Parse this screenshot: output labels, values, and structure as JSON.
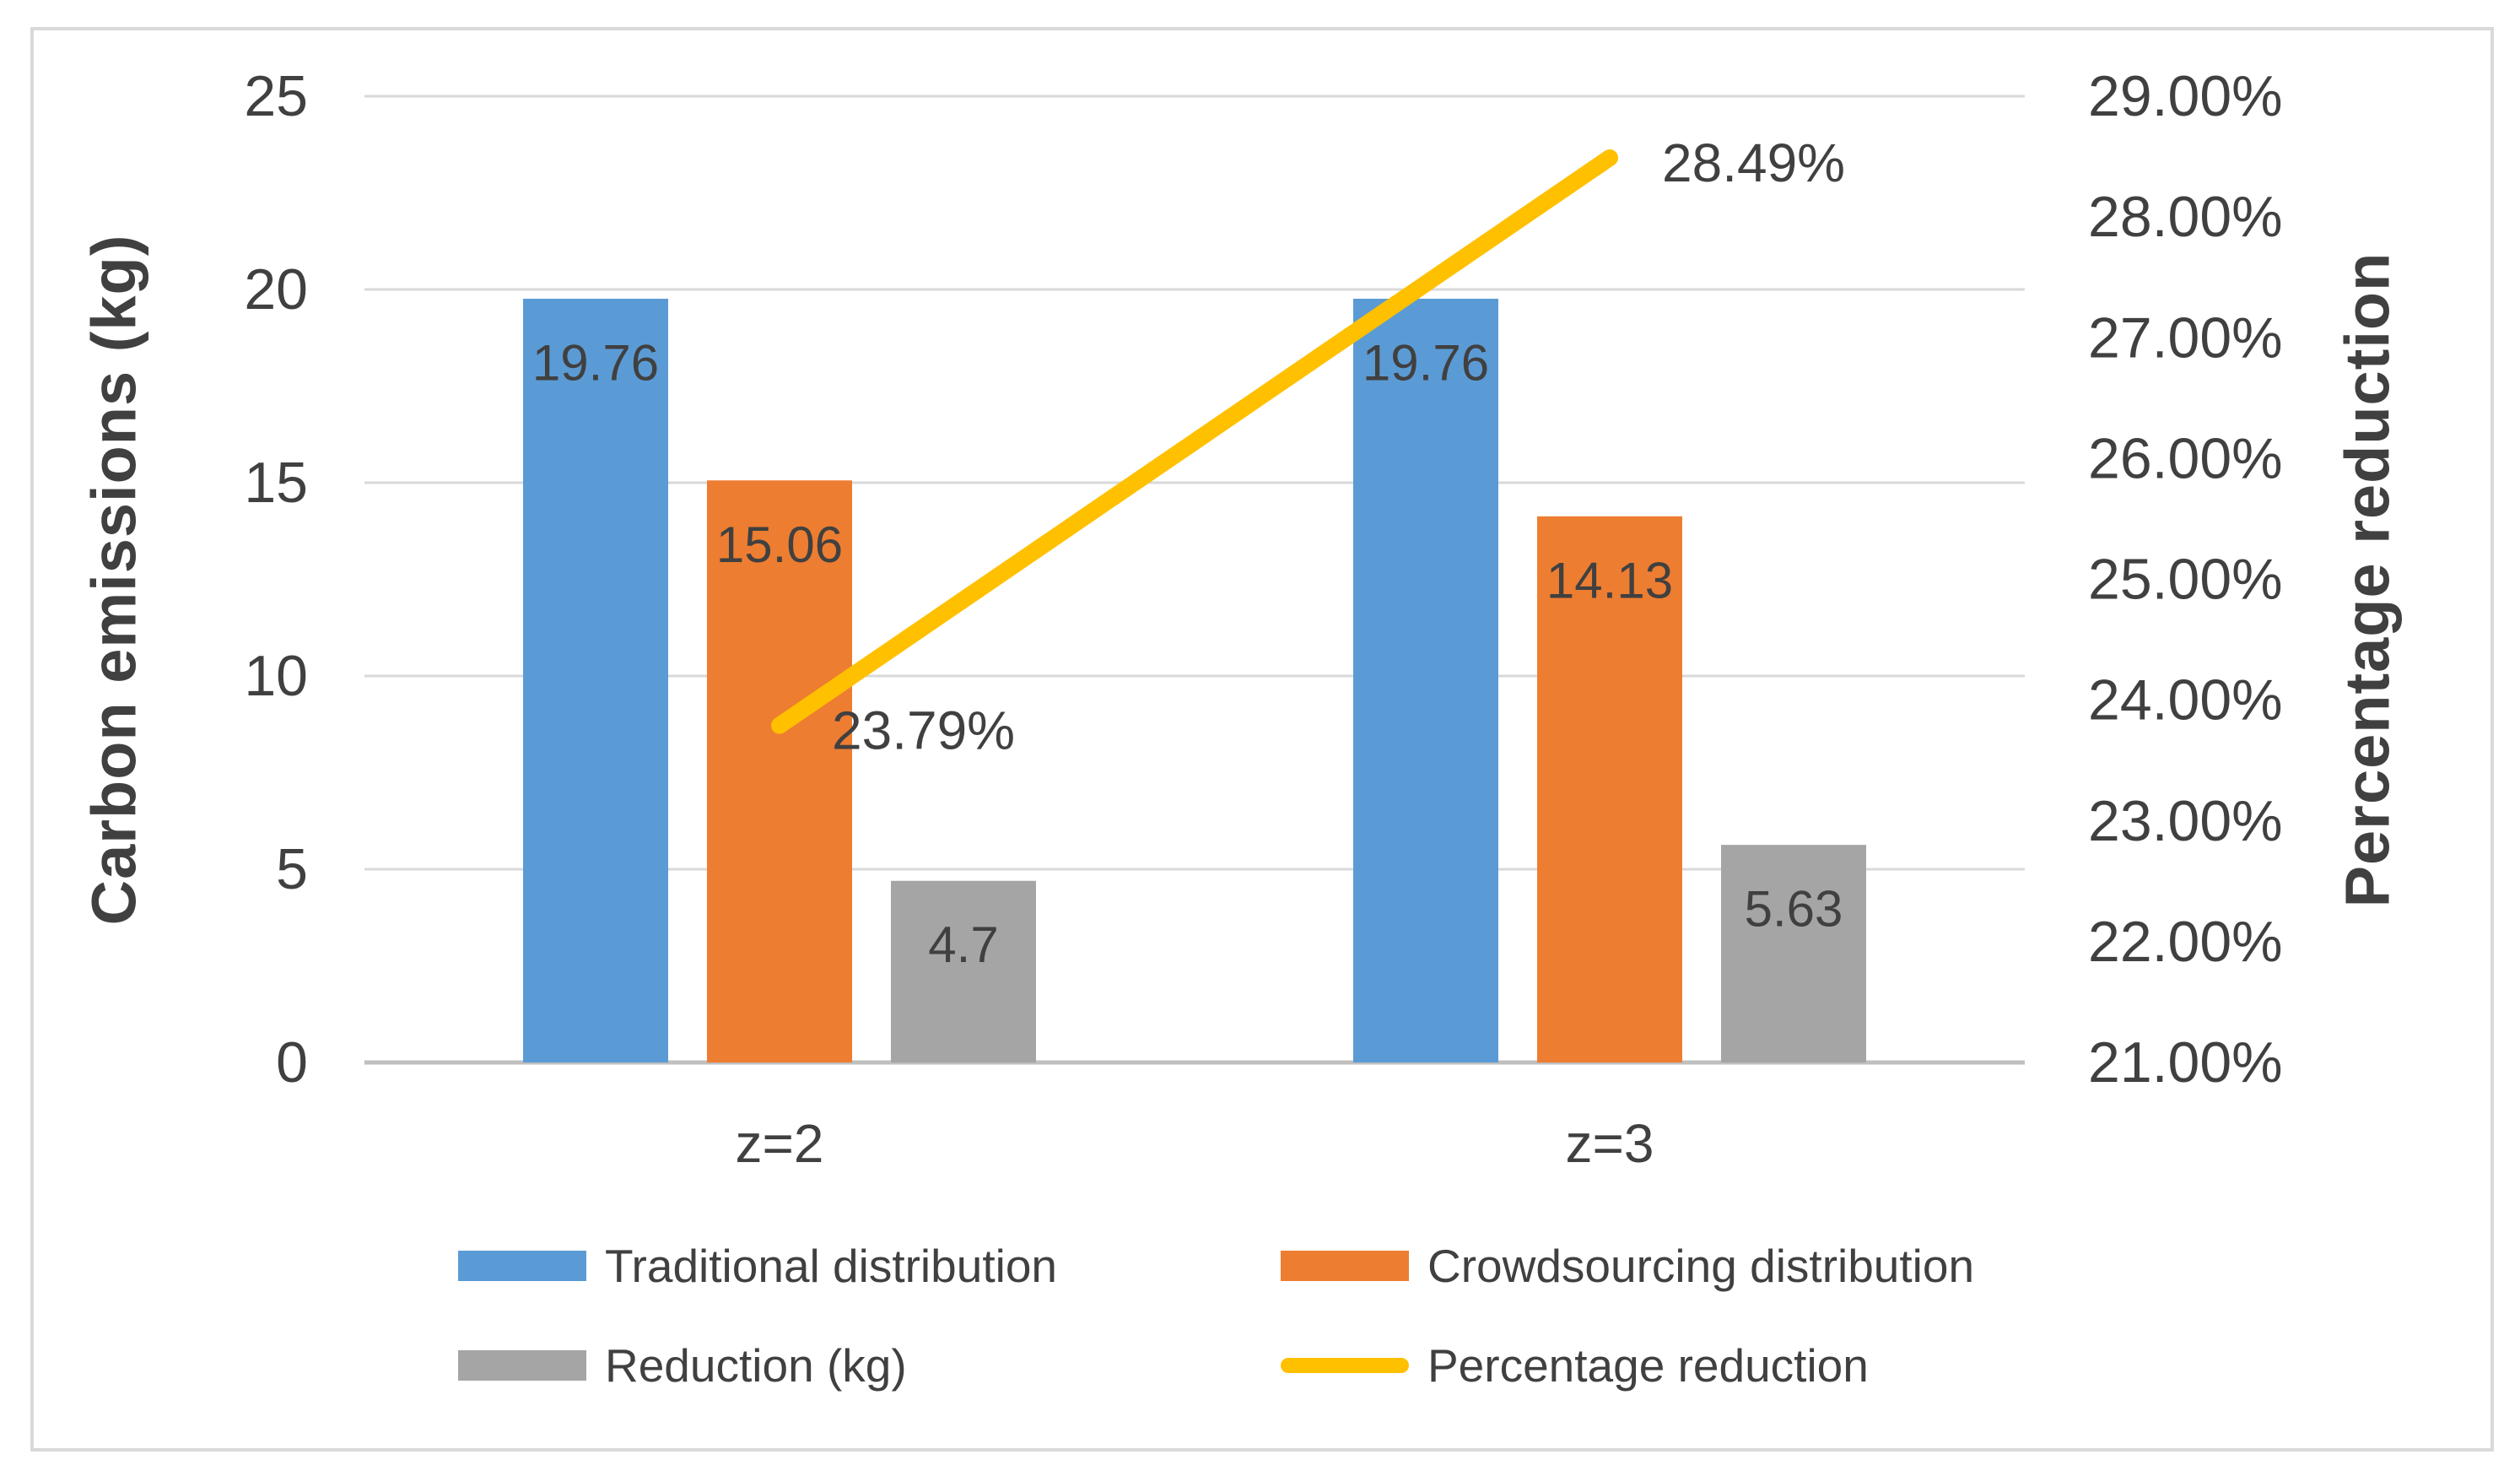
{
  "chart_data": {
    "type": "bar",
    "subtype": "bar-line-combo",
    "title": "",
    "categories": [
      "z=2",
      "z=3"
    ],
    "series": [
      {
        "name": "Traditional distribution",
        "type": "bar",
        "axis": "left",
        "color": "#5B9BD5",
        "values": [
          19.76,
          19.76
        ],
        "labels": [
          "19.76",
          "19.76"
        ]
      },
      {
        "name": "Crowdsourcing distribution",
        "type": "bar",
        "axis": "left",
        "color": "#ED7D31",
        "values": [
          15.06,
          14.13
        ],
        "labels": [
          "15.06",
          "14.13"
        ]
      },
      {
        "name": "Reduction (kg)",
        "type": "bar",
        "axis": "left",
        "color": "#A5A5A5",
        "values": [
          4.7,
          5.63
        ],
        "labels": [
          "4.7",
          "5.63"
        ]
      },
      {
        "name": "Percentage reduction",
        "type": "line",
        "axis": "right",
        "color": "#FFC000",
        "values": [
          23.79,
          28.49
        ],
        "labels": [
          "23.79%",
          "28.49%"
        ]
      }
    ],
    "left_axis": {
      "label": "Carbon emissions (kg)",
      "min": 0,
      "max": 25,
      "step": 5,
      "ticks": [
        "0",
        "5",
        "10",
        "15",
        "20",
        "25"
      ]
    },
    "right_axis": {
      "label": "Percentage reduction",
      "min": 21,
      "max": 29,
      "step": 1,
      "ticks": [
        "21.00%",
        "22.00%",
        "23.00%",
        "24.00%",
        "25.00%",
        "26.00%",
        "27.00%",
        "28.00%",
        "29.00%"
      ]
    },
    "grid": true,
    "legend_position": "bottom",
    "colors": {
      "gridline": "#D9D9D9",
      "baseline": "#BFBFBF",
      "text": "#404040",
      "frame_border": "#D9D9D9",
      "background": "#FFFFFF"
    }
  }
}
